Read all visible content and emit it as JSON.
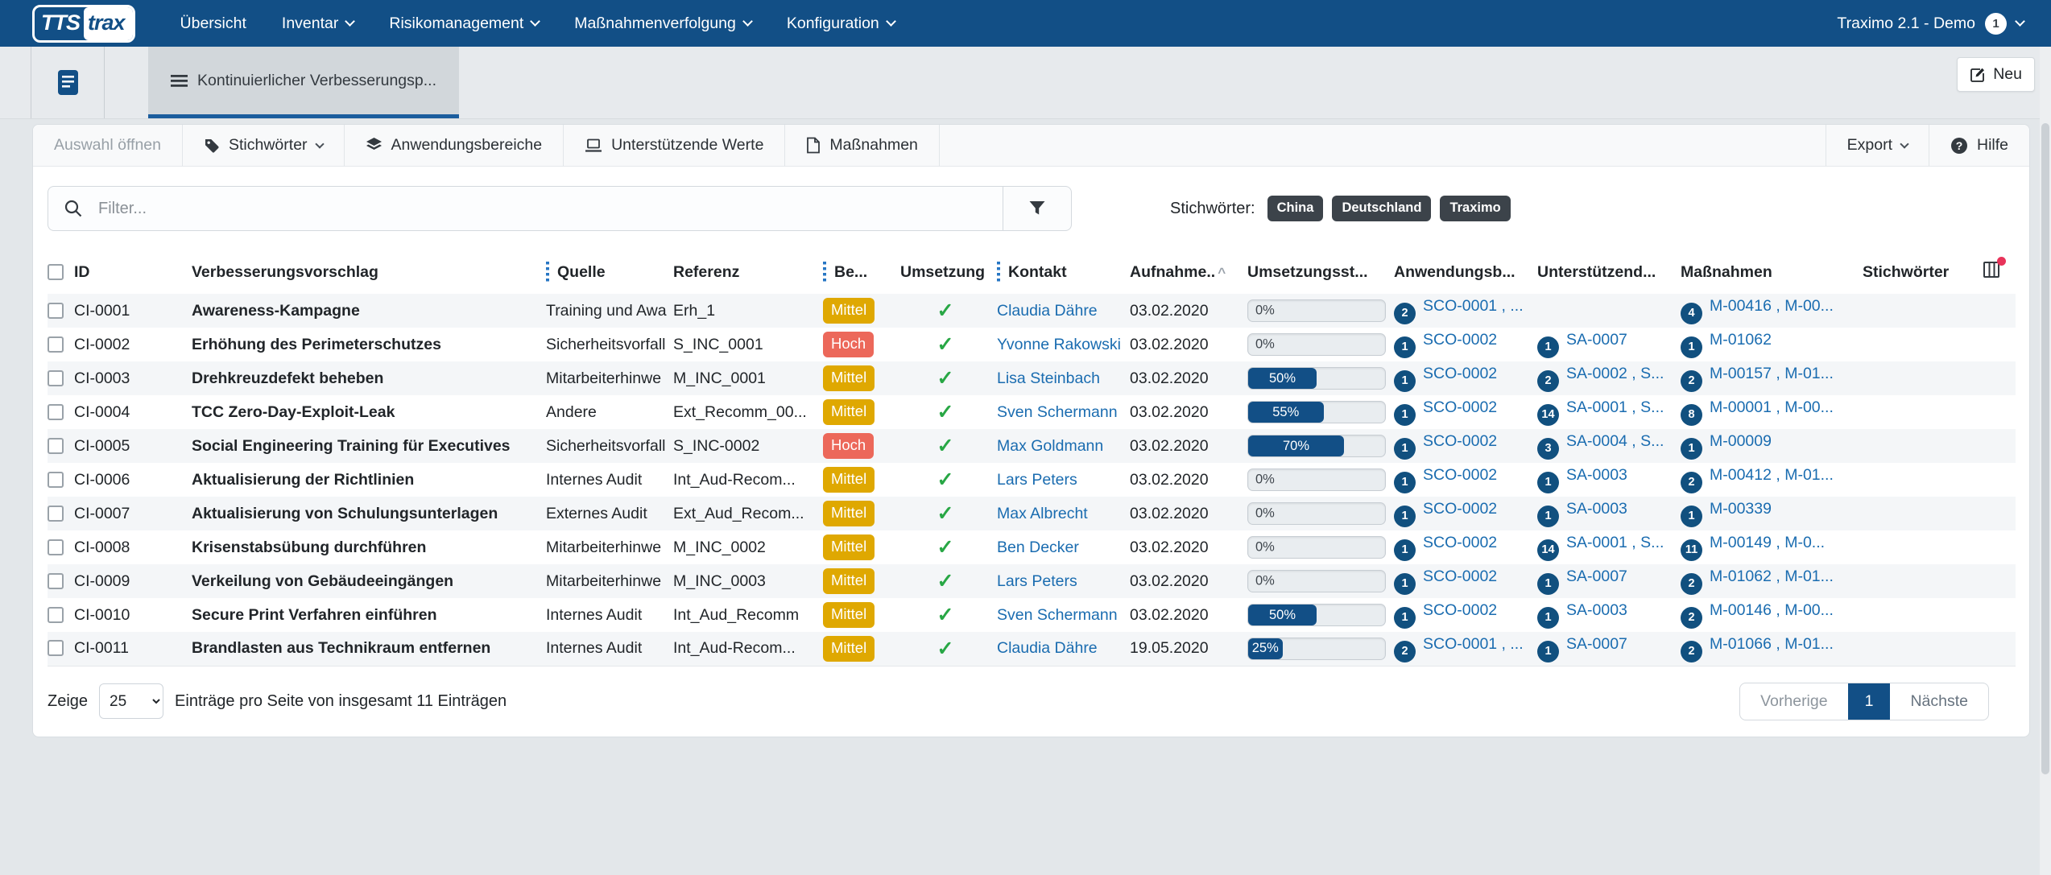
{
  "navbar": {
    "brand": {
      "part1": "TTS",
      "part2": "trax"
    },
    "items": [
      {
        "label": "Übersicht",
        "dropdown": false
      },
      {
        "label": "Inventar",
        "dropdown": true
      },
      {
        "label": "Risikomanagement",
        "dropdown": true
      },
      {
        "label": "Maßnahmenverfolgung",
        "dropdown": true
      },
      {
        "label": "Konfiguration",
        "dropdown": true
      }
    ],
    "right": {
      "label": "Traximo 2.1 - Demo",
      "badge": "1"
    }
  },
  "tabbar": {
    "tab_label": "Kontinuierlicher Verbesserungsp...",
    "new_button": "Neu"
  },
  "toolbar": {
    "open_selection": "Auswahl öffnen",
    "keywords": "Stichwörter",
    "scopes": "Anwendungsbereiche",
    "supporting_values": "Unterstützende Werte",
    "measures": "Maßnahmen",
    "export": "Export",
    "help": "Hilfe"
  },
  "filter": {
    "placeholder": "Filter...",
    "keywords_label": "Stichwörter:",
    "keywords": [
      "China",
      "Deutschland",
      "Traximo"
    ]
  },
  "table": {
    "columns": [
      {
        "label": ""
      },
      {
        "label": "ID"
      },
      {
        "label": "Verbesserungsvorschlag"
      },
      {
        "label": "Quelle"
      },
      {
        "label": "Referenz"
      },
      {
        "label": "Be..."
      },
      {
        "label": "Umsetzung"
      },
      {
        "label": "Kontakt"
      },
      {
        "label": "Aufnahme.."
      },
      {
        "label": "Umsetzungsst..."
      },
      {
        "label": "Anwendungsb..."
      },
      {
        "label": "Unterstützend..."
      },
      {
        "label": "Maßnahmen"
      },
      {
        "label": "Stichwörter"
      },
      {
        "label": ""
      }
    ],
    "severity_colors": {
      "Mittel": "#dfa801",
      "Hoch": "#ec685a"
    },
    "link_color": "#1a6cb0",
    "badge_color": "#11507f",
    "rows": [
      {
        "id": "CI-0001",
        "title": "Awareness-Kampagne",
        "source": "Training und Awa",
        "reference": "Erh_1",
        "rating": "Mittel",
        "implemented": true,
        "contact": "Claudia Dähre",
        "date": "03.02.2020",
        "progress": 0,
        "scopes": {
          "count": "2",
          "text": "SCO-0001 , ..."
        },
        "supports": {
          "count": "",
          "text": ""
        },
        "measures": {
          "count": "4",
          "text": "M-00416 , M-00..."
        },
        "keywords": ""
      },
      {
        "id": "CI-0002",
        "title": "Erhöhung des Perimeterschutzes",
        "source": "Sicherheitsvorfall",
        "reference": "S_INC_0001",
        "rating": "Hoch",
        "implemented": true,
        "contact": "Yvonne Rakowski",
        "date": "03.02.2020",
        "progress": 0,
        "scopes": {
          "count": "1",
          "text": "SCO-0002"
        },
        "supports": {
          "count": "1",
          "text": "SA-0007"
        },
        "measures": {
          "count": "1",
          "text": "M-01062"
        },
        "keywords": ""
      },
      {
        "id": "CI-0003",
        "title": "Drehkreuzdefekt beheben",
        "source": "Mitarbeiterhinwe",
        "reference": "M_INC_0001",
        "rating": "Mittel",
        "implemented": true,
        "contact": "Lisa Steinbach",
        "date": "03.02.2020",
        "progress": 50,
        "scopes": {
          "count": "1",
          "text": "SCO-0002"
        },
        "supports": {
          "count": "2",
          "text": "SA-0002 , S..."
        },
        "measures": {
          "count": "2",
          "text": "M-00157 , M-01..."
        },
        "keywords": ""
      },
      {
        "id": "CI-0004",
        "title": "TCC Zero-Day-Exploit-Leak",
        "source": "Andere",
        "reference": "Ext_Recomm_00...",
        "rating": "Mittel",
        "implemented": true,
        "contact": "Sven Schermann",
        "date": "03.02.2020",
        "progress": 55,
        "scopes": {
          "count": "1",
          "text": "SCO-0002"
        },
        "supports": {
          "count": "14",
          "text": "SA-0001 , S..."
        },
        "measures": {
          "count": "8",
          "text": "M-00001 , M-00..."
        },
        "keywords": ""
      },
      {
        "id": "CI-0005",
        "title": "Social Engineering Training für Executives",
        "source": "Sicherheitsvorfall",
        "reference": "S_INC-0002",
        "rating": "Hoch",
        "implemented": true,
        "contact": "Max Goldmann",
        "date": "03.02.2020",
        "progress": 70,
        "scopes": {
          "count": "1",
          "text": "SCO-0002"
        },
        "supports": {
          "count": "3",
          "text": "SA-0004 , S..."
        },
        "measures": {
          "count": "1",
          "text": "M-00009"
        },
        "keywords": ""
      },
      {
        "id": "CI-0006",
        "title": "Aktualisierung der Richtlinien",
        "source": "Internes Audit",
        "reference": "Int_Aud-Recom...",
        "rating": "Mittel",
        "implemented": true,
        "contact": "Lars Peters",
        "date": "03.02.2020",
        "progress": 0,
        "scopes": {
          "count": "1",
          "text": "SCO-0002"
        },
        "supports": {
          "count": "1",
          "text": "SA-0003"
        },
        "measures": {
          "count": "2",
          "text": "M-00412 , M-01..."
        },
        "keywords": ""
      },
      {
        "id": "CI-0007",
        "title": "Aktualisierung von Schulungsunterlagen",
        "source": "Externes Audit",
        "reference": "Ext_Aud_Recom...",
        "rating": "Mittel",
        "implemented": true,
        "contact": "Max Albrecht",
        "date": "03.02.2020",
        "progress": 0,
        "scopes": {
          "count": "1",
          "text": "SCO-0002"
        },
        "supports": {
          "count": "1",
          "text": "SA-0003"
        },
        "measures": {
          "count": "1",
          "text": "M-00339"
        },
        "keywords": ""
      },
      {
        "id": "CI-0008",
        "title": "Krisenstabsübung durchführen",
        "source": "Mitarbeiterhinwe",
        "reference": "M_INC_0002",
        "rating": "Mittel",
        "implemented": true,
        "contact": "Ben Decker",
        "date": "03.02.2020",
        "progress": 0,
        "scopes": {
          "count": "1",
          "text": "SCO-0002"
        },
        "supports": {
          "count": "14",
          "text": "SA-0001 , S..."
        },
        "measures": {
          "count": "11",
          "text": "M-00149 , M-0..."
        },
        "keywords": ""
      },
      {
        "id": "CI-0009",
        "title": "Verkeilung von Gebäudeeingängen",
        "source": "Mitarbeiterhinwe",
        "reference": "M_INC_0003",
        "rating": "Mittel",
        "implemented": true,
        "contact": "Lars Peters",
        "date": "03.02.2020",
        "progress": 0,
        "scopes": {
          "count": "1",
          "text": "SCO-0002"
        },
        "supports": {
          "count": "1",
          "text": "SA-0007"
        },
        "measures": {
          "count": "2",
          "text": "M-01062 , M-01..."
        },
        "keywords": ""
      },
      {
        "id": "CI-0010",
        "title": "Secure Print Verfahren einführen",
        "source": "Internes Audit",
        "reference": "Int_Aud_Recomm",
        "rating": "Mittel",
        "implemented": true,
        "contact": "Sven Schermann",
        "date": "03.02.2020",
        "progress": 50,
        "scopes": {
          "count": "1",
          "text": "SCO-0002"
        },
        "supports": {
          "count": "1",
          "text": "SA-0003"
        },
        "measures": {
          "count": "2",
          "text": "M-00146 , M-00..."
        },
        "keywords": ""
      },
      {
        "id": "CI-0011",
        "title": "Brandlasten aus Technikraum entfernen",
        "source": "Internes Audit",
        "reference": "Int_Aud-Recom...",
        "rating": "Mittel",
        "implemented": true,
        "contact": "Claudia Dähre",
        "date": "19.05.2020",
        "progress": 25,
        "scopes": {
          "count": "2",
          "text": "SCO-0001 , ..."
        },
        "supports": {
          "count": "1",
          "text": "SA-0007"
        },
        "measures": {
          "count": "2",
          "text": "M-01066 , M-01..."
        },
        "keywords": ""
      }
    ]
  },
  "footer": {
    "show_label": "Zeige",
    "page_size": "25",
    "entries_text": "Einträge pro Seite von insgesamt 11 Einträgen",
    "prev": "Vorherige",
    "page": "1",
    "next": "Nächste"
  }
}
